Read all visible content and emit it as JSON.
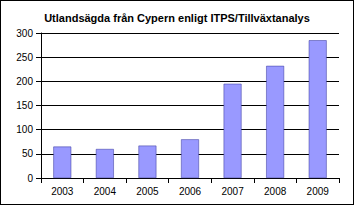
{
  "chart_data": {
    "type": "bar",
    "title": "Utlandsägda från Cypern enligt ITPS/Tillväxtanalys",
    "categories": [
      "2003",
      "2004",
      "2005",
      "2006",
      "2007",
      "2008",
      "2009"
    ],
    "values": [
      65,
      60,
      67,
      80,
      195,
      232,
      285
    ],
    "color": "#9999ff",
    "ylim": [
      0,
      300
    ],
    "yticks": [
      0,
      50,
      100,
      150,
      200,
      250,
      300
    ],
    "grid": true
  }
}
